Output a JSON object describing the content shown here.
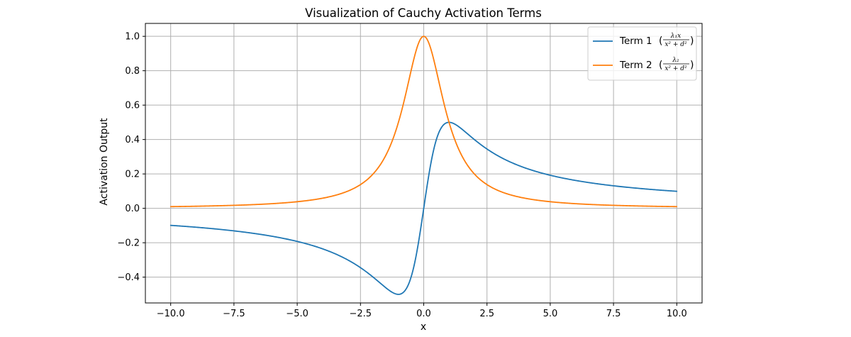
{
  "chart_data": {
    "type": "line",
    "title": "Visualization of Cauchy Activation Terms",
    "xlabel": "x",
    "ylabel": "Activation Output",
    "xlim": [
      -11.0,
      11.0
    ],
    "ylim": [
      -0.55,
      1.075
    ],
    "xticks": [
      -10,
      -7.5,
      -5,
      -2.5,
      0,
      2.5,
      5,
      7.5,
      10
    ],
    "xtick_labels": [
      "−10.0",
      "−7.5",
      "−5.0",
      "−2.5",
      "0.0",
      "2.5",
      "5.0",
      "7.5",
      "10.0"
    ],
    "yticks": [
      -0.4,
      -0.2,
      0,
      0.2,
      0.4,
      0.6,
      0.8,
      1.0
    ],
    "ytick_labels": [
      "−0.4",
      "−0.2",
      "0.0",
      "0.2",
      "0.4",
      "0.6",
      "0.8",
      "1.0"
    ],
    "grid": true,
    "legend_position": "top-right",
    "parameters": {
      "lambda1": 1,
      "lambda2": 1,
      "d": 1
    },
    "x_range": [
      -10,
      10
    ],
    "sample_x": [
      -10,
      -7.5,
      -5,
      -2.5,
      -1,
      0,
      1,
      2.5,
      5,
      7.5,
      10
    ],
    "series": [
      {
        "name": "Term 1",
        "legend_label": "Term 1",
        "formula_numerator": "λ₁x",
        "formula_denominator": "x² + d²",
        "color": "#1f77b4",
        "values": [
          -0.099,
          -0.131,
          -0.192,
          -0.345,
          -0.5,
          0.0,
          0.5,
          0.345,
          0.192,
          0.131,
          0.099
        ]
      },
      {
        "name": "Term 2",
        "legend_label": "Term 2",
        "formula_numerator": "λ₂",
        "formula_denominator": "x² + d²",
        "color": "#ff7f0e",
        "values": [
          0.0099,
          0.0175,
          0.0385,
          0.138,
          0.5,
          1.0,
          0.5,
          0.138,
          0.0385,
          0.0175,
          0.0099
        ]
      }
    ]
  }
}
